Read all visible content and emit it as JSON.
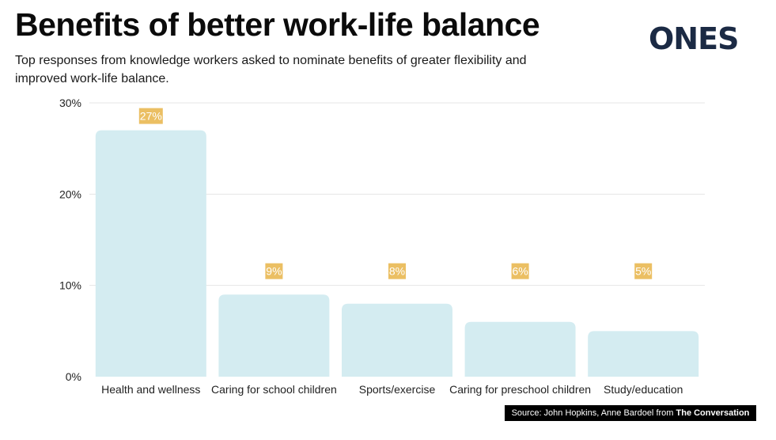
{
  "header": {
    "title": "Benefits of better work-life balance",
    "subtitle": "Top responses from knowledge workers asked to nominate benefits of greater flexibility and improved work-life balance."
  },
  "logo": {
    "text": "ONES",
    "color": "#1b2a44"
  },
  "source": {
    "prefix": "Source: John Hopkins, Anne Bardoel",
    "middle": "from",
    "suffix": "The Conversation"
  },
  "colors": {
    "bar": "#d4ecf1",
    "label_bg": "#ebbf63",
    "grid": "#e6e6e6"
  },
  "chart_data": {
    "type": "bar",
    "categories": [
      "Health and wellness",
      "Caring for school children",
      "Sports/exercise",
      "Caring for preschool children",
      "Study/education"
    ],
    "values": [
      27,
      9,
      8,
      6,
      5
    ],
    "value_labels": [
      "27%",
      "9%",
      "8%",
      "6%",
      "5%"
    ],
    "y_ticks": [
      0,
      10,
      20,
      30
    ],
    "y_tick_labels": [
      "0%",
      "10%",
      "20%",
      "30%"
    ],
    "ylim": [
      0,
      30
    ],
    "grid": true
  }
}
